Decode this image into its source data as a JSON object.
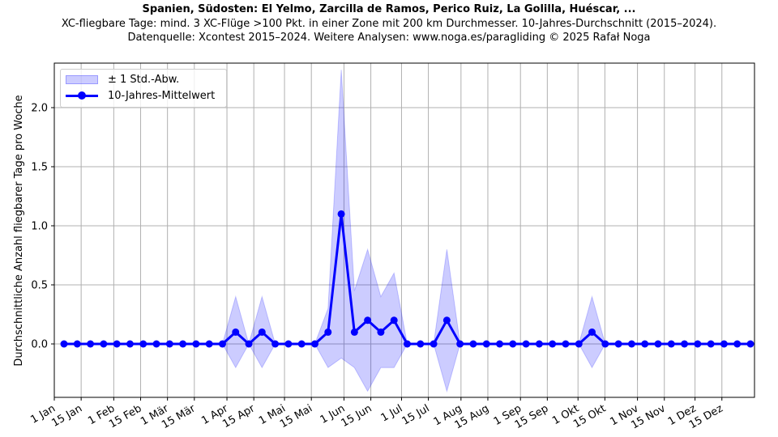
{
  "titles": {
    "main": "Spanien, Südosten: El Yelmo, Zarcilla de Ramos, Perico Ruiz, La Golilla, Huéscar, ...",
    "subtitle": "XC-fliegbare Tage: mind. 3 XC-Flüge >100 Pkt. in einer Zone mit 200 km Durchmesser. 10-Jahres-Durchschnitt (2015–2024).",
    "source": "Datenquelle: Xcontest 2015–2024. Weitere Analysen: www.noga.es/paragliding © 2025 Rafał Noga"
  },
  "legend": {
    "band_label": "± 1 Std.-Abw.",
    "line_label": "10-Jahres-Mittelwert"
  },
  "colors": {
    "line": "#0000ff",
    "band": "rgba(0,0,255,0.2)",
    "grid": "#b0b0b0"
  },
  "chart_data": {
    "type": "line",
    "title": "Spanien, Südosten: El Yelmo, Zarcilla de Ramos, Perico Ruiz, La Golilla, Huéscar, ...",
    "xlabel": "",
    "ylabel": "Durchschnittliche Anzahl fliegbarer Tage pro Woche",
    "ylim": [
      -0.45,
      2.38
    ],
    "yticks": [
      0.0,
      0.5,
      1.0,
      1.5,
      2.0
    ],
    "ytick_labels": [
      "0.0",
      "0.5",
      "1.0",
      "1.5",
      "2.0"
    ],
    "xtick_labels": [
      "1 Jan",
      "15 Jan",
      "1 Feb",
      "15 Feb",
      "1 Mär",
      "15 Mär",
      "1 Apr",
      "15 Apr",
      "1 Mai",
      "15 Mai",
      "1 Jun",
      "15 Jun",
      "1 Jul",
      "15 Jul",
      "1 Aug",
      "15 Aug",
      "1 Sep",
      "15 Sep",
      "1 Okt",
      "15 Okt",
      "1 Nov",
      "15 Nov",
      "1 Dez",
      "15 Dez"
    ],
    "xtick_day_of_year": [
      0,
      14,
      31,
      45,
      59,
      73,
      90,
      104,
      120,
      134,
      151,
      165,
      181,
      195,
      212,
      226,
      243,
      257,
      273,
      287,
      304,
      318,
      334,
      348
    ],
    "grid": true,
    "legend_position": "upper left",
    "x_week": [
      1,
      2,
      3,
      4,
      5,
      6,
      7,
      8,
      9,
      10,
      11,
      12,
      13,
      14,
      15,
      16,
      17,
      18,
      19,
      20,
      21,
      22,
      23,
      24,
      25,
      26,
      27,
      28,
      29,
      30,
      31,
      32,
      33,
      34,
      35,
      36,
      37,
      38,
      39,
      40,
      41,
      42,
      43,
      44,
      45,
      46,
      47,
      48,
      49,
      50,
      51,
      52,
      53
    ],
    "series": [
      {
        "name": "10-Jahres-Mittelwert",
        "values": [
          0,
          0,
          0,
          0,
          0,
          0,
          0,
          0,
          0,
          0,
          0,
          0,
          0,
          0.1,
          0,
          0.1,
          0,
          0,
          0,
          0,
          0.1,
          1.1,
          0.1,
          0.2,
          0.1,
          0.2,
          0,
          0,
          0,
          0.2,
          0,
          0,
          0,
          0,
          0,
          0,
          0,
          0,
          0,
          0,
          0.1,
          0,
          0,
          0,
          0,
          0,
          0,
          0,
          0,
          0,
          0,
          0,
          0
        ]
      },
      {
        "name": "± 1 Std.-Abw. (oben)",
        "values": [
          0,
          0,
          0,
          0,
          0,
          0,
          0,
          0,
          0,
          0,
          0,
          0,
          0,
          0.4,
          0,
          0.4,
          0,
          0,
          0,
          0,
          0.3,
          2.32,
          0.45,
          0.8,
          0.4,
          0.6,
          0,
          0,
          0,
          0.8,
          0,
          0,
          0,
          0,
          0,
          0,
          0,
          0,
          0,
          0,
          0.4,
          0,
          0,
          0,
          0,
          0,
          0,
          0,
          0,
          0,
          0,
          0,
          0
        ]
      },
      {
        "name": "± 1 Std.-Abw. (unten)",
        "values": [
          0,
          0,
          0,
          0,
          0,
          0,
          0,
          0,
          0,
          0,
          0,
          0,
          0,
          -0.2,
          0,
          -0.2,
          0,
          0,
          0,
          0,
          -0.2,
          -0.12,
          -0.2,
          -0.4,
          -0.2,
          -0.2,
          0,
          0,
          0,
          -0.4,
          0,
          0,
          0,
          0,
          0,
          0,
          0,
          0,
          0,
          0,
          -0.2,
          0,
          0,
          0,
          0,
          0,
          0,
          0,
          0,
          0,
          0,
          0,
          0
        ]
      }
    ]
  }
}
